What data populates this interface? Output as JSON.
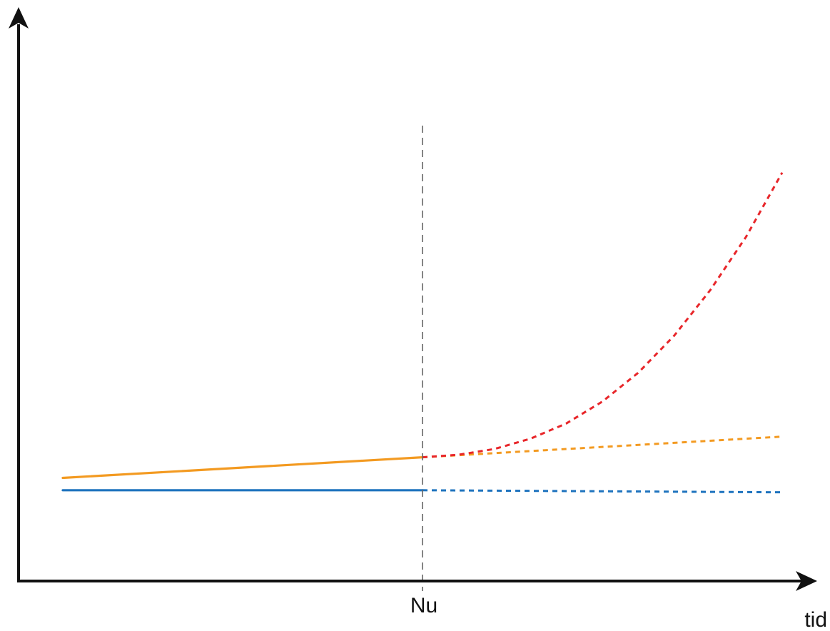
{
  "chart_data": {
    "type": "line",
    "title": "",
    "xlabel": "tid",
    "ylabel": "",
    "now_label": "Nu",
    "xlim": [
      0,
      10
    ],
    "ylim": [
      0,
      10
    ],
    "now_x": 5,
    "grid": false,
    "legend": "none",
    "series": [
      {
        "color": "#f39a21",
        "style": "solid",
        "x": [
          0,
          5
        ],
        "y": [
          2.5,
          3.0
        ]
      },
      {
        "color": "#1e73be",
        "style": "solid",
        "x": [
          0,
          5
        ],
        "y": [
          2.2,
          2.2
        ]
      },
      {
        "color": "#f39a21",
        "style": "dashed",
        "x": [
          5,
          10
        ],
        "y": [
          3.0,
          3.5
        ]
      },
      {
        "color": "#1e73be",
        "style": "dashed",
        "x": [
          5,
          10
        ],
        "y": [
          2.2,
          2.15
        ]
      },
      {
        "color": "#e8262a",
        "style": "dashed",
        "x": [
          5.0,
          5.5,
          6.0,
          6.5,
          7.0,
          7.5,
          8.0,
          8.5,
          9.0,
          9.5,
          10.0
        ],
        "y": [
          3.0,
          3.06,
          3.2,
          3.45,
          3.82,
          4.35,
          5.05,
          5.95,
          7.05,
          8.35,
          9.9
        ]
      }
    ]
  }
}
